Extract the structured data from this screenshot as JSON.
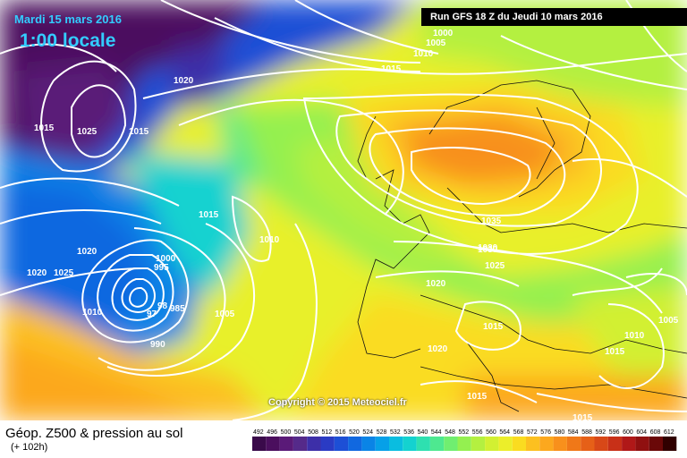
{
  "header": {
    "date": "Mardi 15 mars 2016",
    "time": "1:00 locale",
    "run": "Run GFS 18 Z du Jeudi 10 mars 2016"
  },
  "footer": {
    "title": "Géop. Z500 & pression au sol",
    "lead": "(+ 102h)",
    "copyright": "Copyright © 2015 Meteociel.fr"
  },
  "legend": {
    "ticks": [
      "492",
      "496",
      "500",
      "504",
      "508",
      "512",
      "516",
      "520",
      "524",
      "528",
      "532",
      "536",
      "540",
      "544",
      "548",
      "552",
      "556",
      "560",
      "564",
      "568",
      "572",
      "576",
      "580",
      "584",
      "588",
      "592",
      "596",
      "600",
      "604",
      "608",
      "612"
    ],
    "colors": [
      "#3a0a4a",
      "#4b0f5e",
      "#5a1a78",
      "#552a8a",
      "#3d2fa8",
      "#2a3bc4",
      "#1d4fd6",
      "#1168e0",
      "#0a84e6",
      "#06a0e8",
      "#0abde0",
      "#14d2d0",
      "#2ee0b0",
      "#4ee890",
      "#70ee70",
      "#94f050",
      "#b4f040",
      "#d2f032",
      "#ecee2a",
      "#fadc20",
      "#fcc020",
      "#fca81e",
      "#f8901c",
      "#f07818",
      "#e66018",
      "#d84818",
      "#c83018",
      "#b01818",
      "#901010",
      "#6a0808",
      "#300000"
    ]
  },
  "pressure_labels": [
    "1000",
    "1005",
    "1010",
    "1015",
    "1020",
    "1015",
    "1025",
    "1015",
    "1020",
    "1015",
    "1010",
    "1020",
    "1030",
    "1025",
    "1010",
    "1000",
    "995",
    "985",
    "98",
    "97",
    "990",
    "1005",
    "1015",
    "1035",
    "1030",
    "1025",
    "1020",
    "1015",
    "1020",
    "1015",
    "1005",
    "1010",
    "1015",
    "1020",
    "1020"
  ]
}
